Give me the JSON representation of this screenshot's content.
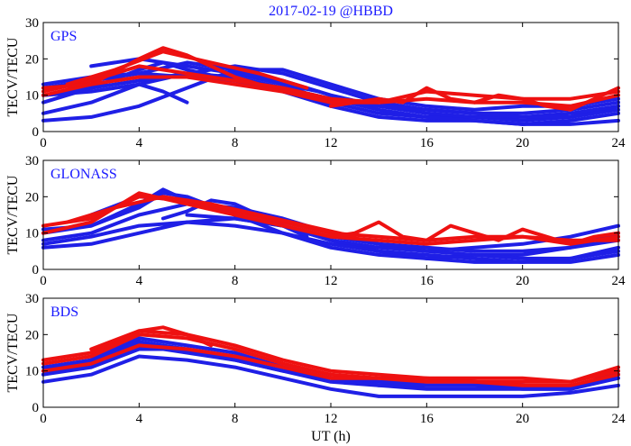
{
  "chart_data": {
    "type": "line",
    "title": "2017-02-19 @HBBD",
    "xlabel": "UT (h)",
    "ylabel": "TECV/TECU",
    "xlim": [
      0,
      24
    ],
    "ylim": [
      0,
      30
    ],
    "xticks": [
      0,
      4,
      8,
      12,
      16,
      20,
      24
    ],
    "yticks": [
      0,
      10,
      20,
      30
    ],
    "colors": {
      "blue": "#1f1fe6",
      "red": "#ee1111",
      "label": "#1a1aff"
    },
    "panels": [
      {
        "name": "GPS",
        "series": [
          {
            "color": "blue",
            "x": [
              0,
              2,
              4,
              6,
              8,
              10,
              12,
              14,
              16,
              18,
              20,
              22,
              24
            ],
            "y": [
              12,
              14,
              16,
              19,
              17,
              13,
              8,
              5,
              4,
              4,
              3,
              4,
              7
            ]
          },
          {
            "color": "blue",
            "x": [
              0,
              2,
              4,
              5,
              6,
              8,
              10,
              12,
              14,
              16,
              18,
              20,
              22,
              24
            ],
            "y": [
              8,
              12,
              17,
              19,
              17,
              14,
              11,
              7,
              4,
              3,
              3,
              2,
              3,
              5
            ]
          },
          {
            "color": "blue",
            "x": [
              0,
              2,
              4,
              6,
              8,
              10,
              12,
              14,
              16,
              18,
              20,
              22,
              24
            ],
            "y": [
              5,
              8,
              13,
              16,
              18,
              16,
              12,
              8,
              6,
              5,
              5,
              6,
              8
            ]
          },
          {
            "color": "blue",
            "x": [
              0,
              2,
              4,
              6,
              8,
              10,
              12,
              14,
              16,
              18,
              20,
              22,
              24
            ],
            "y": [
              3,
              4,
              7,
              12,
              17,
              17,
              13,
              9,
              7,
              6,
              7,
              7,
              9
            ]
          },
          {
            "color": "blue",
            "x": [
              0,
              2,
              4,
              5,
              6
            ],
            "y": [
              10,
              11,
              13,
              11,
              8
            ]
          },
          {
            "color": "blue",
            "x": [
              2,
              4,
              6,
              8,
              10,
              11.5
            ],
            "y": [
              18,
              20,
              18,
              16,
              13,
              11
            ]
          },
          {
            "color": "blue",
            "x": [
              0,
              2,
              4,
              6,
              8,
              10,
              12,
              14,
              16,
              18,
              20,
              22,
              24
            ],
            "y": [
              10,
              12,
              14,
              16,
              15,
              12,
              9,
              6,
              4,
              3,
              2,
              2,
              3
            ]
          },
          {
            "color": "blue",
            "x": [
              8,
              10,
              12,
              14,
              16,
              18,
              20,
              22,
              24
            ],
            "y": [
              16,
              14,
              10,
              7,
              5,
              4,
              4,
              5,
              7
            ]
          },
          {
            "color": "blue",
            "x": [
              0,
              2,
              4,
              6,
              8,
              10,
              12,
              14,
              16,
              18,
              20,
              22,
              24
            ],
            "y": [
              13,
              15,
              16,
              15,
              14,
              12,
              9,
              7,
              6,
              5,
              4,
              4,
              6
            ]
          },
          {
            "color": "red",
            "x": [
              0,
              2,
              4,
              5,
              6,
              8,
              10,
              12
            ],
            "y": [
              10,
              13,
              20,
              23,
              21,
              15,
              11,
              8
            ]
          },
          {
            "color": "red",
            "x": [
              0,
              2,
              4,
              6,
              8,
              10,
              12,
              14,
              16,
              18,
              20,
              22,
              24
            ],
            "y": [
              11,
              14,
              18,
              16,
              14,
              12,
              9,
              8,
              9,
              8,
              8,
              7,
              10
            ]
          },
          {
            "color": "red",
            "x": [
              0,
              2,
              4,
              6,
              8,
              10,
              12,
              14,
              16,
              18,
              20,
              22,
              24
            ],
            "y": [
              12,
              13,
              15,
              15,
              13,
              11,
              8,
              8,
              11,
              10,
              9,
              9,
              11
            ]
          },
          {
            "color": "red",
            "x": [
              1,
              3,
              5,
              7,
              9,
              11
            ],
            "y": [
              13,
              17,
              22,
              19,
              16,
              12
            ]
          },
          {
            "color": "red",
            "x": [
              12,
              13,
              14,
              15,
              16,
              17,
              18,
              19,
              20,
              21,
              22,
              23,
              24
            ],
            "y": [
              7,
              8,
              9,
              8,
              12,
              9,
              8,
              10,
              9,
              7,
              6,
              9,
              12
            ]
          }
        ]
      },
      {
        "name": "GLONASS",
        "series": [
          {
            "color": "blue",
            "x": [
              0,
              2,
              4,
              5,
              6,
              8,
              10,
              12,
              14,
              16,
              18,
              20,
              22,
              24
            ],
            "y": [
              10,
              12,
              17,
              21,
              20,
              15,
              10,
              6,
              4,
              3,
              4,
              4,
              6,
              10
            ]
          },
          {
            "color": "blue",
            "x": [
              0,
              2,
              4,
              6,
              8,
              10,
              12,
              14,
              16,
              18,
              20,
              22,
              24
            ],
            "y": [
              8,
              10,
              15,
              18,
              17,
              14,
              10,
              7,
              5,
              4,
              3,
              3,
              5
            ]
          },
          {
            "color": "blue",
            "x": [
              0,
              2,
              4,
              6,
              8,
              10,
              12,
              14,
              16,
              18,
              20,
              22,
              24
            ],
            "y": [
              6,
              7,
              10,
              13,
              14,
              12,
              8,
              5,
              3,
              2,
              2,
              3,
              6
            ]
          },
          {
            "color": "blue",
            "x": [
              0,
              2,
              4,
              5,
              6,
              8,
              10,
              12,
              14,
              16,
              18,
              20,
              22,
              24
            ],
            "y": [
              11,
              12,
              18,
              22,
              19,
              15,
              12,
              8,
              6,
              5,
              6,
              7,
              9,
              12
            ]
          },
          {
            "color": "blue",
            "x": [
              2,
              4,
              6,
              7,
              8
            ],
            "y": [
              15,
              20,
              19,
              17,
              15
            ]
          },
          {
            "color": "blue",
            "x": [
              5,
              6,
              7,
              8,
              9,
              10,
              11
            ],
            "y": [
              14,
              16,
              19,
              18,
              15,
              12,
              9
            ]
          },
          {
            "color": "blue",
            "x": [
              0,
              2,
              4,
              6,
              8,
              10,
              12,
              14,
              16,
              18,
              20,
              22,
              24
            ],
            "y": [
              7,
              9,
              12,
              13,
              12,
              10,
              7,
              5,
              4,
              3,
              2,
              2,
              4
            ]
          },
          {
            "color": "blue",
            "x": [
              6,
              8,
              10,
              12,
              14,
              16,
              18,
              20,
              22,
              24
            ],
            "y": [
              15,
              14,
              12,
              9,
              7,
              6,
              5,
              5,
              6,
              8
            ]
          },
          {
            "color": "red",
            "x": [
              0,
              2,
              4,
              6,
              8,
              10,
              12,
              14,
              16,
              18,
              20,
              22,
              24
            ],
            "y": [
              12,
              14,
              20,
              19,
              16,
              13,
              10,
              9,
              8,
              9,
              9,
              8,
              8
            ]
          },
          {
            "color": "red",
            "x": [
              0,
              2,
              4,
              6,
              8,
              10,
              12,
              14,
              16,
              18,
              20,
              22,
              24
            ],
            "y": [
              10,
              13,
              21,
              18,
              15,
              12,
              9,
              8,
              7,
              8,
              9,
              7,
              9
            ]
          },
          {
            "color": "red",
            "x": [
              1,
              3,
              5,
              7,
              9,
              11,
              13
            ],
            "y": [
              13,
              17,
              20,
              18,
              15,
              12,
              9
            ]
          },
          {
            "color": "red",
            "x": [
              12,
              13,
              14,
              15,
              16,
              17,
              18,
              19,
              20,
              21,
              22,
              23,
              24
            ],
            "y": [
              9,
              10,
              13,
              9,
              8,
              12,
              10,
              8,
              11,
              9,
              7,
              9,
              10
            ]
          }
        ]
      },
      {
        "name": "BDS",
        "series": [
          {
            "color": "blue",
            "x": [
              0,
              2,
              4,
              6,
              8,
              10,
              12,
              14,
              16,
              18,
              20,
              22,
              24
            ],
            "y": [
              9,
              12,
              17,
              15,
              13,
              10,
              7,
              6,
              6,
              6,
              5,
              5,
              9
            ]
          },
          {
            "color": "blue",
            "x": [
              0,
              2,
              4,
              6,
              8,
              10,
              12,
              14,
              16,
              18,
              20,
              22,
              24
            ],
            "y": [
              7,
              9,
              14,
              13,
              11,
              8,
              5,
              3,
              3,
              3,
              3,
              4,
              6
            ]
          },
          {
            "color": "blue",
            "x": [
              0,
              2,
              4,
              6,
              8,
              10,
              12,
              14,
              16,
              18,
              20,
              22,
              24
            ],
            "y": [
              10,
              13,
              19,
              17,
              15,
              11,
              8,
              7,
              6,
              6,
              6,
              5,
              10
            ]
          },
          {
            "color": "blue",
            "x": [
              0,
              2,
              4,
              6,
              8,
              10,
              12,
              14,
              16,
              18,
              20,
              22,
              24
            ],
            "y": [
              11,
              13,
              18,
              16,
              13,
              10,
              8,
              7,
              7,
              7,
              6,
              5,
              9
            ]
          },
          {
            "color": "blue",
            "x": [
              0,
              2,
              4,
              6,
              8,
              10,
              12,
              14,
              16,
              18,
              20,
              22,
              24
            ],
            "y": [
              9,
              11,
              16,
              16,
              14,
              11,
              8,
              6,
              5,
              5,
              5,
              5,
              8
            ]
          },
          {
            "color": "red",
            "x": [
              0,
              2,
              4,
              6,
              8,
              10,
              12,
              14,
              16,
              18,
              20,
              22,
              24
            ],
            "y": [
              13,
              15,
              21,
              20,
              17,
              13,
              10,
              9,
              8,
              8,
              8,
              7,
              11
            ]
          },
          {
            "color": "red",
            "x": [
              0,
              2,
              4,
              6,
              8,
              10,
              12,
              14,
              16,
              18,
              20,
              22,
              24
            ],
            "y": [
              12,
              14,
              20,
              19,
              16,
              12,
              9,
              8,
              8,
              7,
              7,
              7,
              10
            ]
          },
          {
            "color": "red",
            "x": [
              0,
              2,
              4,
              6,
              8,
              10,
              12,
              14,
              16,
              18,
              20,
              22,
              24
            ],
            "y": [
              10,
              12,
              17,
              16,
              14,
              11,
              8,
              8,
              7,
              7,
              6,
              6,
              9
            ]
          },
          {
            "color": "red",
            "x": [
              2,
              4,
              5,
              6,
              7
            ],
            "y": [
              16,
              21,
              22,
              20,
              17
            ]
          }
        ]
      }
    ]
  }
}
